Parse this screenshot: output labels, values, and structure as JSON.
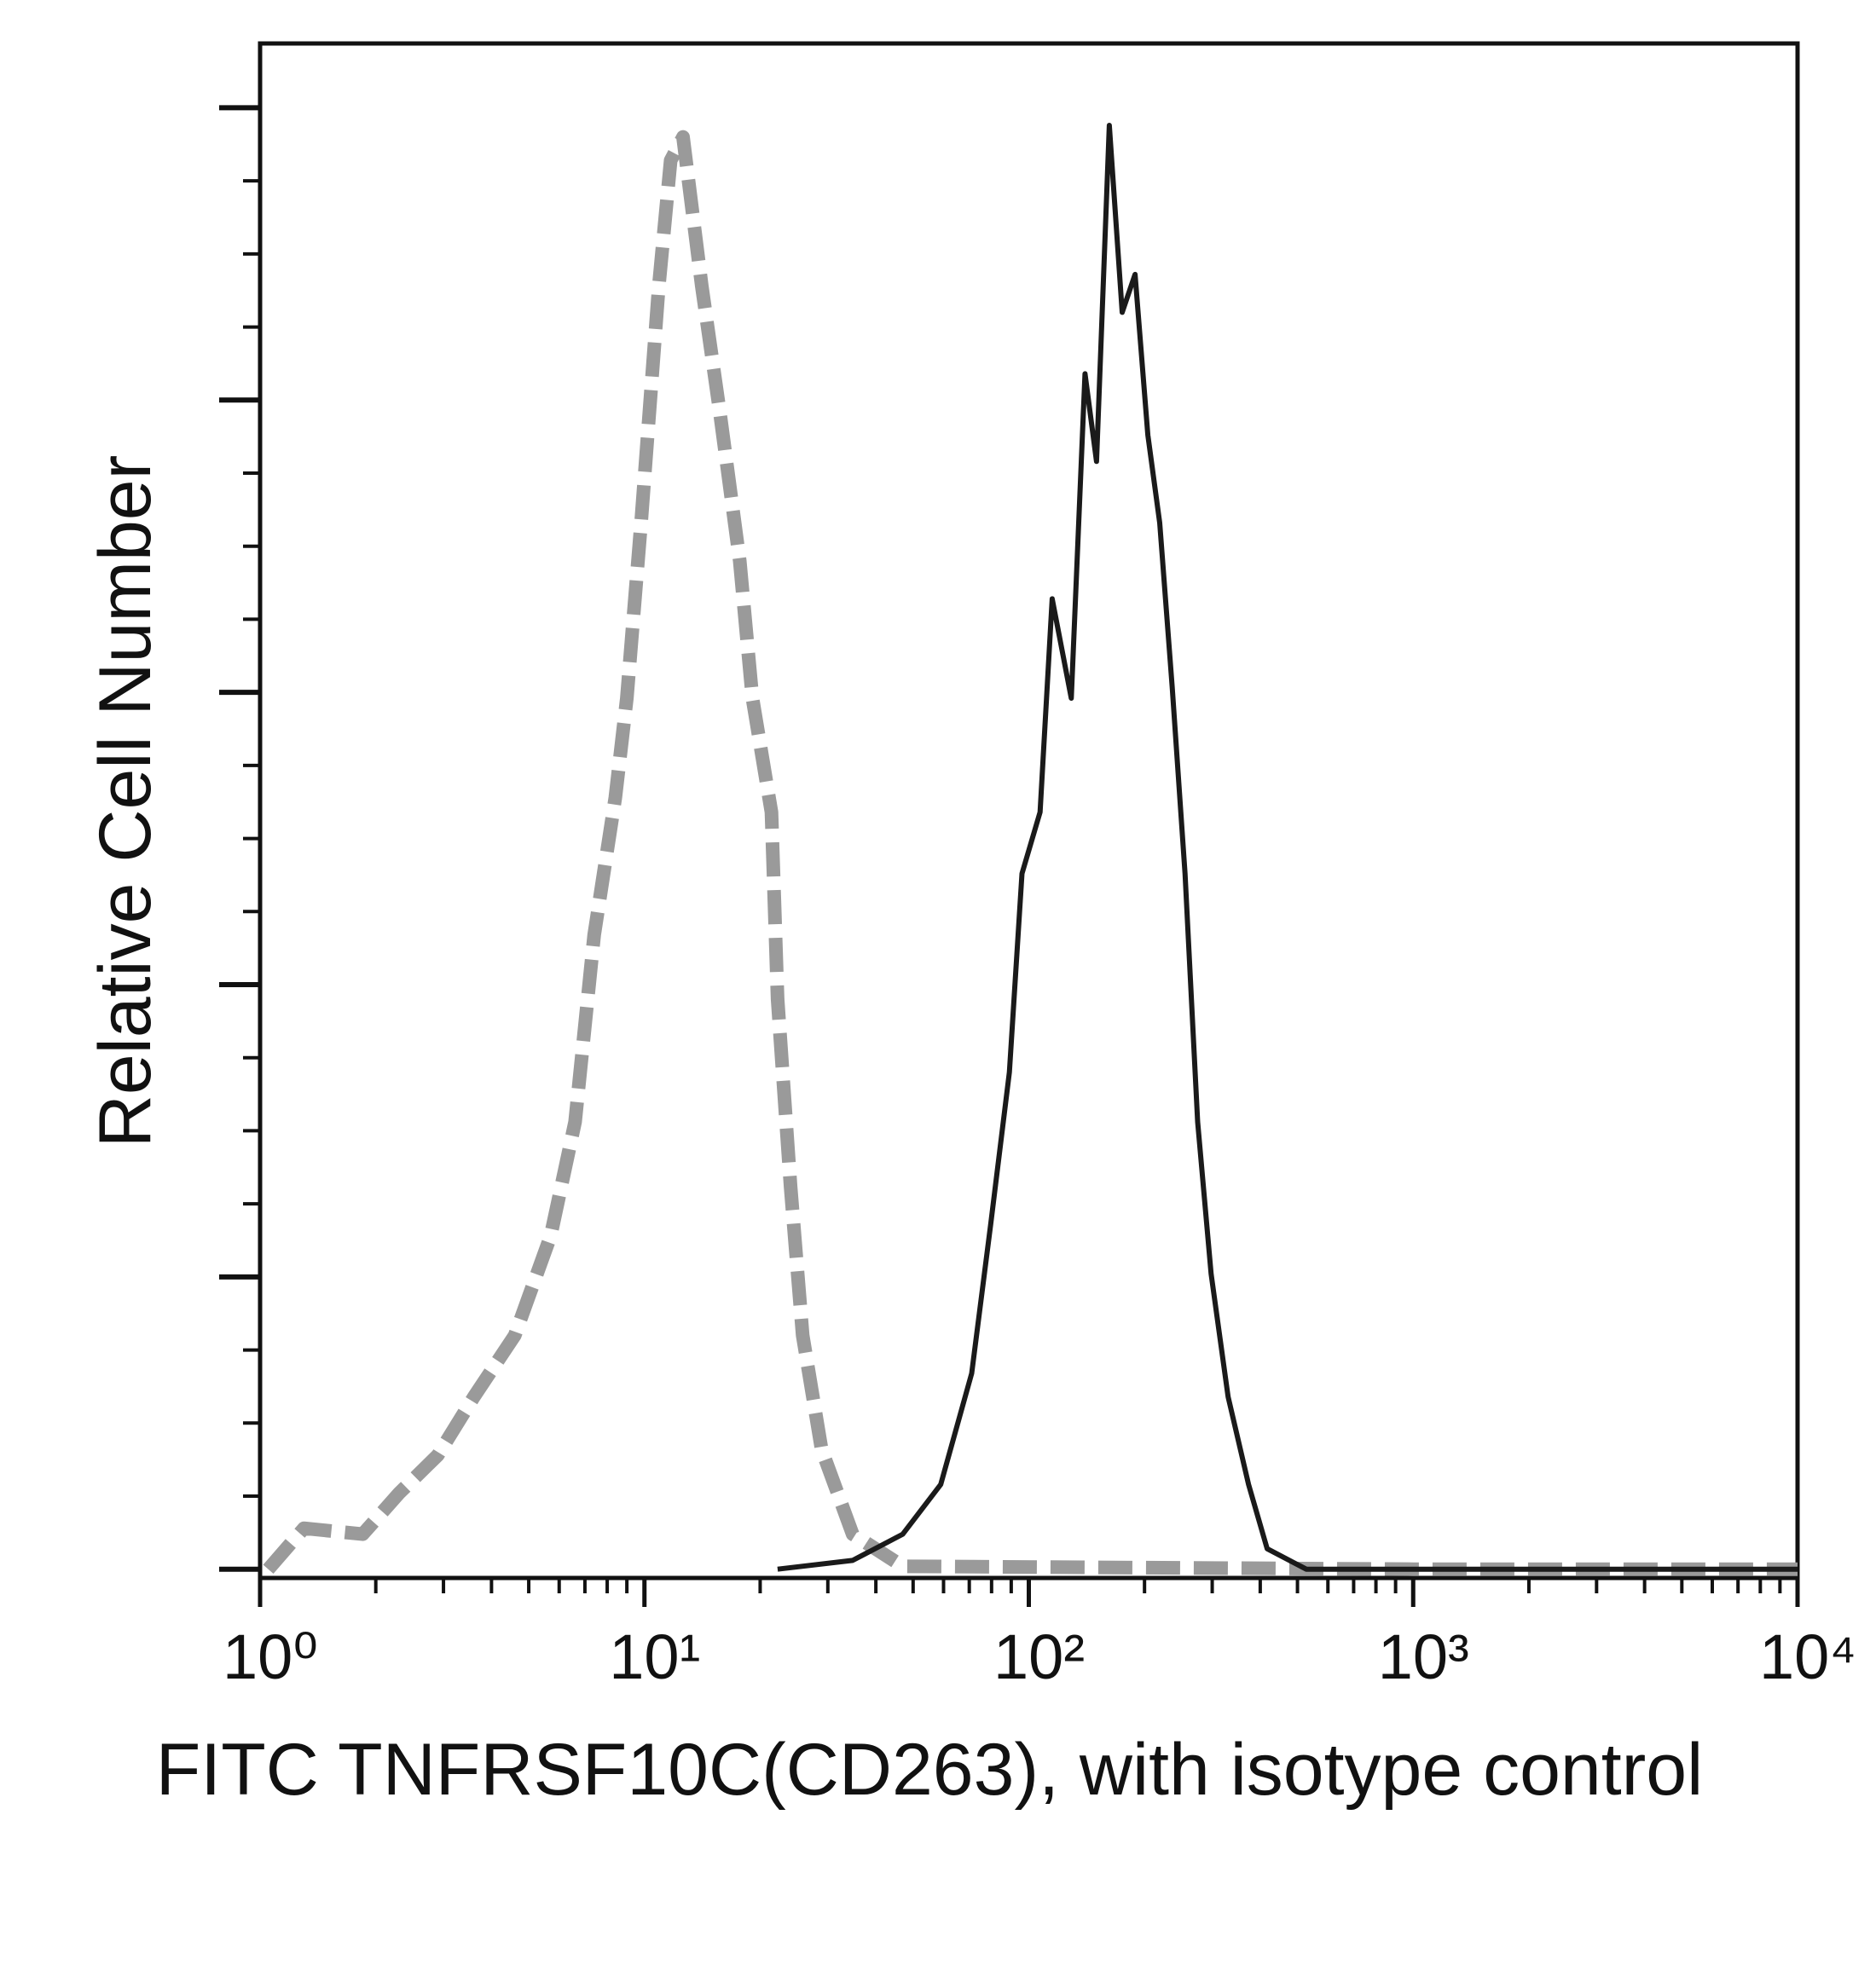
{
  "chart_data": {
    "type": "line",
    "x_label": "FITC TNFRSF10C(CD263), with isotype control",
    "y_label": "Relative Cell Number",
    "x_log": true,
    "xlim": [
      1,
      10000
    ],
    "xticks": [
      {
        "value": 1,
        "label": "10⁰"
      },
      {
        "value": 10,
        "label": "10¹"
      },
      {
        "value": 100,
        "label": "10²"
      },
      {
        "value": 1000,
        "label": "10³"
      },
      {
        "value": 10000,
        "label": "10⁴"
      }
    ],
    "ylim": [
      -0.03,
      5.22
    ],
    "yticks": [
      0,
      1,
      2,
      3,
      4,
      5
    ],
    "series": [
      {
        "color": "#9a9a9a",
        "dashed": true,
        "x": [
          1.05,
          1.3,
          1.85,
          2.3,
          2.9,
          3.6,
          4.6,
          5.7,
          6.6,
          7.4,
          8.4,
          9.0,
          9.8,
          10.9,
          11.7,
          12.6,
          14.1,
          15.7,
          17.7,
          19.1,
          21.4,
          22.2,
          24.0,
          25.8,
          28.9,
          34.8,
          47,
          1000,
          10000
        ],
        "values": [
          0,
          0.14,
          0.12,
          0.26,
          0.39,
          0.59,
          0.8,
          1.14,
          1.53,
          2.17,
          2.64,
          2.98,
          3.58,
          4.39,
          4.82,
          4.9,
          4.39,
          3.96,
          3.45,
          2.98,
          2.59,
          1.95,
          1.31,
          0.8,
          0.41,
          0.12,
          0.01,
          0,
          0
        ]
      },
      {
        "color": "#1a1a1a",
        "dashed": false,
        "x": [
          22.2,
          34.8,
          47,
          59,
          71,
          79.6,
          89,
          96,
          107,
          115,
          129,
          140,
          150,
          162,
          175,
          189,
          204,
          219,
          236,
          255,
          275,
          298,
          330,
          373,
          417,
          527,
          10000
        ],
        "values": [
          0,
          0.03,
          0.12,
          0.29,
          0.67,
          1.18,
          1.7,
          2.38,
          2.59,
          3.32,
          2.98,
          4.09,
          3.79,
          4.94,
          4.3,
          4.43,
          3.88,
          3.58,
          3.02,
          2.38,
          1.53,
          1.01,
          0.59,
          0.29,
          0.07,
          0,
          0
        ]
      }
    ]
  }
}
